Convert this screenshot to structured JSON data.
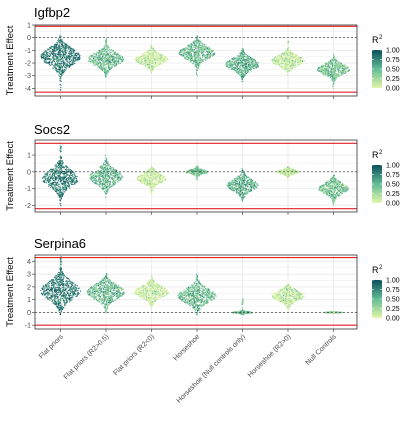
{
  "colors": {
    "low": "#e2f5a8",
    "mid": "#63bd96",
    "high": "#0b4f5c",
    "threshold_line": "#e3202a",
    "grid": "#ebebeb",
    "zero_line": "#333333"
  },
  "chart_data": [
    {
      "type": "violin",
      "title": "Igfbp2",
      "ylabel": "Treatment Effect",
      "ylim": [
        -4.6,
        1.0
      ],
      "yticks": [
        "1",
        "0",
        "-1",
        "-2",
        "-3",
        "-4"
      ],
      "ytick_values": [
        1,
        0,
        -1,
        -2,
        -3,
        -4
      ],
      "threshold_lines": [
        0.9,
        -4.3
      ],
      "reference_line": 0,
      "categories": [
        "Flat priors",
        "Flat priors (R2>0.5)",
        "Flat priors (R2<0)",
        "Horseshoe",
        "Horseshoe (Null controls only)",
        "Horseshoe (R2>0)",
        "Null Controls"
      ],
      "distributions": [
        {
          "center": -1.5,
          "spread": 0.65,
          "low": -4.2,
          "high": 0.2,
          "r2": 0.8
        },
        {
          "center": -1.7,
          "spread": 0.5,
          "low": -3.2,
          "high": 0.0,
          "r2": 0.45
        },
        {
          "center": -1.7,
          "spread": 0.4,
          "low": -2.8,
          "high": -0.6,
          "r2": 0.05
        },
        {
          "center": -1.2,
          "spread": 0.5,
          "low": -3.0,
          "high": 0.2,
          "r2": 0.45
        },
        {
          "center": -2.1,
          "spread": 0.45,
          "low": -3.5,
          "high": -0.8,
          "r2": 0.5
        },
        {
          "center": -1.8,
          "spread": 0.4,
          "low": -3.0,
          "high": -0.1,
          "r2": 0.08
        },
        {
          "center": -2.5,
          "spread": 0.4,
          "low": -4.0,
          "high": -1.3,
          "r2": 0.4
        }
      ],
      "legend": {
        "title": "R",
        "superscript": "2",
        "ticks": [
          "1.00",
          "0.75",
          "0.50",
          "0.25",
          "0.00"
        ],
        "tick_values": [
          1.0,
          0.75,
          0.5,
          0.25,
          0.0
        ]
      }
    },
    {
      "type": "violin",
      "title": "Socs2",
      "ylabel": "Treatment Effect",
      "ylim": [
        -2.4,
        1.9
      ],
      "yticks": [
        "1",
        "0",
        "-1",
        "-2"
      ],
      "ytick_values": [
        1,
        0,
        -1,
        -2
      ],
      "threshold_lines": [
        1.7,
        -2.2
      ],
      "reference_line": 0,
      "categories": [
        "Flat priors",
        "Flat priors (R2>0.5)",
        "Flat priors (R2<0)",
        "Horseshoe",
        "Horseshoe (Null controls only)",
        "Horseshoe (R2>0)",
        "Null Controls"
      ],
      "distributions": [
        {
          "center": -0.4,
          "spread": 0.5,
          "low": -2.1,
          "high": 1.6,
          "r2": 0.8
        },
        {
          "center": -0.3,
          "spread": 0.42,
          "low": -1.6,
          "high": 1.0,
          "r2": 0.45
        },
        {
          "center": -0.4,
          "spread": 0.3,
          "low": -1.3,
          "high": 0.3,
          "r2": 0.05
        },
        {
          "center": 0.0,
          "spread": 0.12,
          "low": -0.5,
          "high": 0.4,
          "r2": 0.4
        },
        {
          "center": -0.8,
          "spread": 0.35,
          "low": -1.8,
          "high": 0.2,
          "r2": 0.5
        },
        {
          "center": 0.0,
          "spread": 0.12,
          "low": -0.4,
          "high": 0.3,
          "r2": 0.08
        },
        {
          "center": -1.0,
          "spread": 0.32,
          "low": -2.0,
          "high": -0.2,
          "r2": 0.4
        }
      ],
      "legend": {
        "title": "R",
        "superscript": "2",
        "ticks": [
          "1.00",
          "0.75",
          "0.50",
          "0.25",
          "0.00"
        ],
        "tick_values": [
          1.0,
          0.75,
          0.5,
          0.25,
          0.0
        ]
      }
    },
    {
      "type": "violin",
      "title": "Serpina6",
      "ylabel": "Treatment Effect",
      "ylim": [
        -1.3,
        4.5
      ],
      "yticks": [
        "4",
        "3",
        "2",
        "1",
        "0",
        "-1"
      ],
      "ytick_values": [
        4,
        3,
        2,
        1,
        0,
        -1
      ],
      "threshold_lines": [
        4.3,
        -1.0
      ],
      "reference_line": 0,
      "categories": [
        "Flat priors",
        "Flat priors (R2>0.5)",
        "Flat priors (R2<0)",
        "Horseshoe",
        "Horseshoe (Null controls only)",
        "Horseshoe (R2>0)",
        "Null Controls"
      ],
      "distributions": [
        {
          "center": 1.7,
          "spread": 0.7,
          "low": -0.3,
          "high": 4.4,
          "r2": 0.8
        },
        {
          "center": 1.6,
          "spread": 0.55,
          "low": 0.0,
          "high": 3.2,
          "r2": 0.45
        },
        {
          "center": 1.6,
          "spread": 0.45,
          "low": 0.3,
          "high": 2.9,
          "r2": 0.05
        },
        {
          "center": 1.3,
          "spread": 0.55,
          "low": -0.2,
          "high": 3.0,
          "r2": 0.45
        },
        {
          "center": 0.0,
          "spread": 0.06,
          "low": -0.2,
          "high": 1.2,
          "r2": 0.45
        },
        {
          "center": 1.3,
          "spread": 0.4,
          "low": 0.2,
          "high": 2.2,
          "r2": 0.08
        },
        {
          "center": 0.0,
          "spread": 0.03,
          "low": -0.05,
          "high": 0.05,
          "r2": 0.35
        }
      ],
      "legend": {
        "title": "R",
        "superscript": "2",
        "ticks": [
          "1.00",
          "0.75",
          "0.50",
          "0.25",
          "0.00"
        ],
        "tick_values": [
          1.0,
          0.75,
          0.5,
          0.25,
          0.0
        ]
      }
    }
  ],
  "x_tick_labels": [
    "Flat priors",
    "Flat priors (R2>0.5)",
    "Flat priors (R2<0)",
    "Horseshoe",
    "Horseshoe (Null controls only)",
    "Horseshoe (R2>0)",
    "Null Controls"
  ]
}
